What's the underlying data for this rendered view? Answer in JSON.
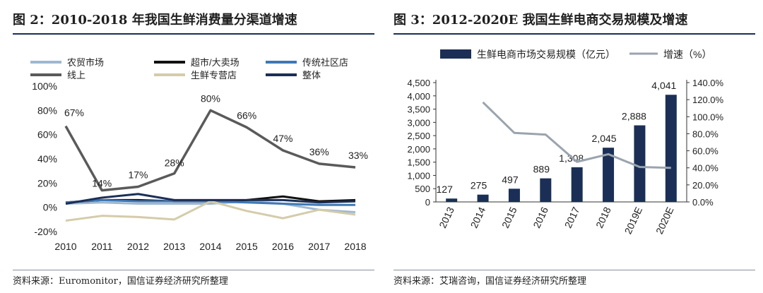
{
  "left": {
    "title": "图 2：2010-2018 年我国生鲜消费量分渠道增速",
    "source": "资料来源：Euromonitor，国信证券经济研究所整理"
  },
  "right": {
    "title": "图 3：2012-2020E 我国生鲜电商交易规模及增速",
    "source": "资料来源：艾瑞咨询，国信证券经济研究所整理"
  },
  "colors": {
    "navy": "#1b2f56",
    "gray": "#9aa4ae",
    "dark_gray": "#5a5a5a",
    "light_blue": "#9fb8d0",
    "blue": "#3f78b5",
    "beige": "#d4ccaa",
    "black": "#111111"
  },
  "chart_data": [
    {
      "type": "line",
      "legend_placement": "top",
      "grid": false,
      "x": [
        "2010",
        "2011",
        "2012",
        "2013",
        "2014",
        "2015",
        "2016",
        "2017",
        "2018"
      ],
      "ylim": [
        -20,
        100
      ],
      "yticks": [
        "100%",
        "80%",
        "60%",
        "40%",
        "20%",
        "0%",
        "-20%"
      ],
      "series": [
        {
          "name": "农贸市场",
          "color": "#9fb8d0",
          "values": [
            3,
            4,
            3,
            3,
            3,
            5,
            3,
            -2,
            -4
          ]
        },
        {
          "name": "超市/大卖场",
          "color": "#111111",
          "values": [
            4,
            6,
            6,
            5,
            5,
            6,
            9,
            5,
            6
          ]
        },
        {
          "name": "传统社区店",
          "color": "#3f78b5",
          "values": [
            4,
            6,
            5,
            5,
            5,
            4,
            3,
            2,
            2
          ]
        },
        {
          "name": "线上",
          "color": "#5a5a5a",
          "values": [
            67,
            14,
            17,
            28,
            80,
            66,
            47,
            36,
            33
          ],
          "labels": [
            "67%",
            "14%",
            "17%",
            "28%",
            "80%",
            "66%",
            "47%",
            "36%",
            "33%"
          ]
        },
        {
          "name": "生鲜专营店",
          "color": "#d4ccaa",
          "values": [
            -11,
            -7,
            -8,
            -10,
            5,
            -3,
            -9,
            -2,
            -6
          ]
        },
        {
          "name": "整体",
          "color": "#1b2f56",
          "values": [
            3,
            8,
            11,
            6,
            6,
            6,
            6,
            4,
            5
          ]
        }
      ]
    },
    {
      "type": "bar",
      "legend_placement": "top",
      "grid": false,
      "categories": [
        "2013",
        "2014",
        "2015",
        "2016",
        "2017",
        "2018",
        "2019E",
        "2020E"
      ],
      "ylim": [
        0,
        4500
      ],
      "yticks": [
        "4,500",
        "4,000",
        "3,500",
        "3,000",
        "2,500",
        "2,000",
        "1,500",
        "1,000",
        "500",
        "0"
      ],
      "y2lim": [
        0,
        140
      ],
      "y2ticks": [
        "140.0%",
        "120.0%",
        "100.0%",
        "80.0%",
        "60.0%",
        "40.0%",
        "20.0%",
        "0.0%"
      ],
      "series": [
        {
          "name": "生鲜电商市场交易规模（亿元）",
          "type": "bar",
          "color": "#1b2f56",
          "values": [
            127,
            275,
            497,
            889,
            1308,
            2045,
            2888,
            4041
          ],
          "labels": [
            "127",
            "275",
            "497",
            "889",
            "1,308",
            "2,045",
            "2,888",
            "4,041"
          ]
        },
        {
          "name": "增速（%）",
          "type": "line",
          "axis": "right",
          "color": "#9aa4ae",
          "values": [
            null,
            117,
            81,
            79,
            47,
            56,
            41,
            40
          ]
        }
      ]
    }
  ]
}
